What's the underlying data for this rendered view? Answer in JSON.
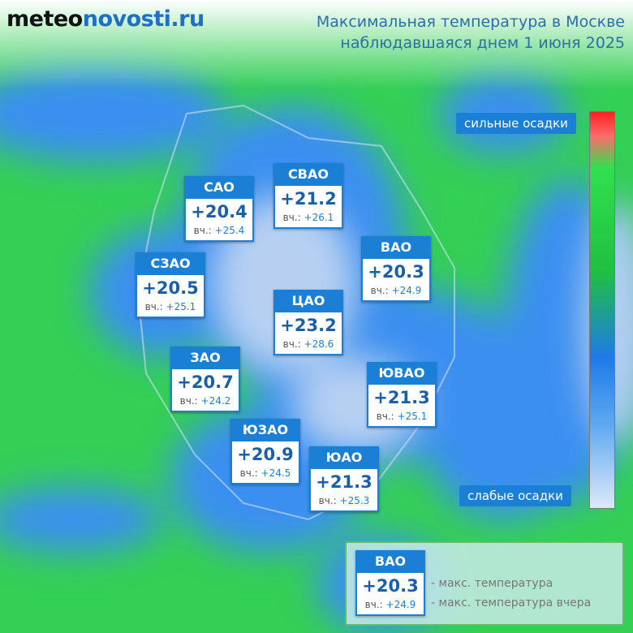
{
  "header": {
    "logo": {
      "prefix": "meteo",
      "suffix": "novosti.ru"
    },
    "title": [
      "Максимальная температура в Москве",
      "наблюдавшаяся днем 1 июня 2025"
    ]
  },
  "scale": {
    "top_label": "сильные осадки",
    "bottom_label": "слабые осадки"
  },
  "districts": [
    {
      "name": "САО",
      "temp": "+20.4",
      "prev_label": "вч.:",
      "prev": "+25.4"
    },
    {
      "name": "СВАО",
      "temp": "+21.2",
      "prev_label": "вч.:",
      "prev": "+26.1"
    },
    {
      "name": "СЗАО",
      "temp": "+20.5",
      "prev_label": "вч.:",
      "prev": "+25.1"
    },
    {
      "name": "ВАО",
      "temp": "+20.3",
      "prev_label": "вч.:",
      "prev": "+24.9"
    },
    {
      "name": "ЦАО",
      "temp": "+23.2",
      "prev_label": "вч.:",
      "prev": "+28.6"
    },
    {
      "name": "ЗАО",
      "temp": "+20.7",
      "prev_label": "вч.:",
      "prev": "+24.2"
    },
    {
      "name": "ЮВАО",
      "temp": "+21.3",
      "prev_label": "вч.:",
      "prev": "+25.1"
    },
    {
      "name": "ЮЗАО",
      "temp": "+20.9",
      "prev_label": "вч.:",
      "prev": "+24.5"
    },
    {
      "name": "ЮАО",
      "temp": "+21.3",
      "prev_label": "вч.:",
      "prev": "+25.3"
    }
  ],
  "legend": {
    "sample": {
      "name": "ВАО",
      "temp": "+20.3",
      "prev_label": "вч.:",
      "prev": "+24.9"
    },
    "temp_note": "- макс. температура",
    "prev_note": "- макс. температура вчера"
  }
}
